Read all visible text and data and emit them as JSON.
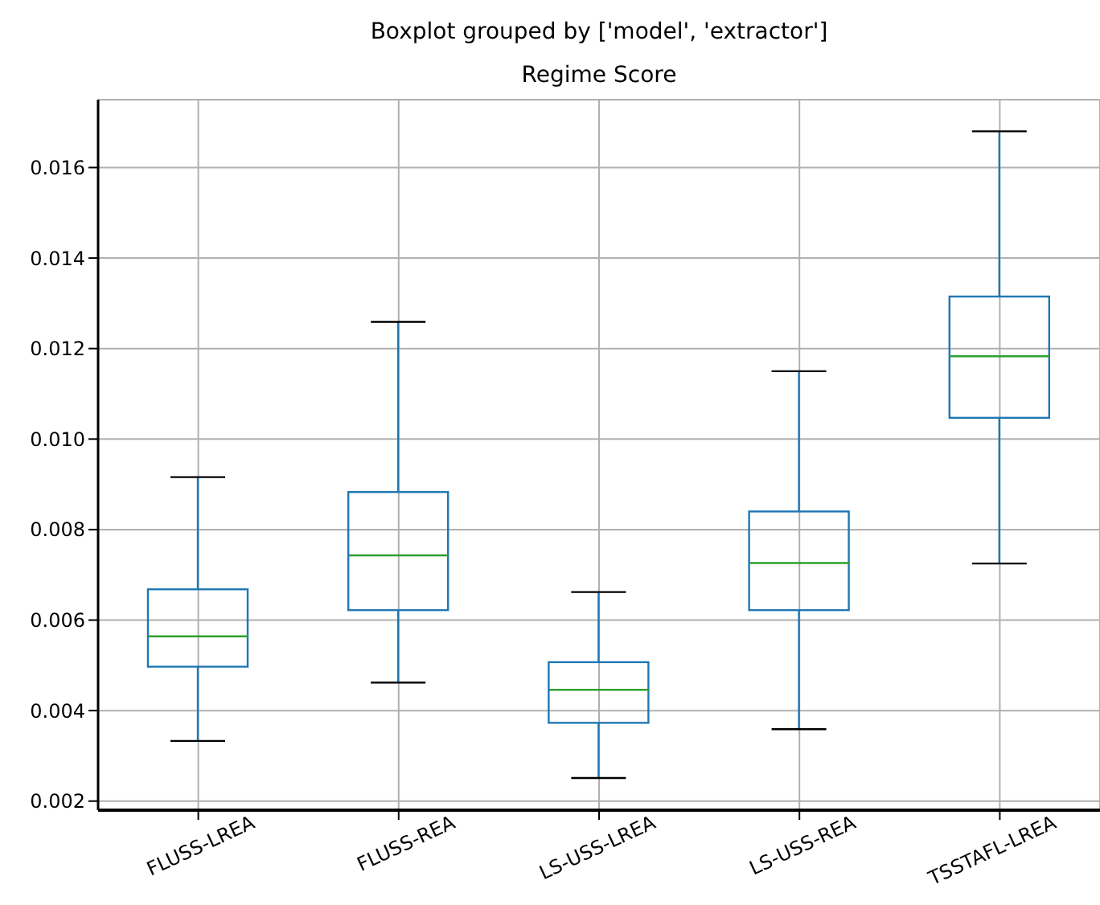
{
  "chart_data": {
    "type": "box",
    "title": "Boxplot grouped by ['model', 'extractor']",
    "subtitle": "Regime Score",
    "categories": [
      "FLUSS-LREA",
      "FLUSS-REA",
      "LS-USS-LREA",
      "LS-USS-REA",
      "TSSTAFL-LREA"
    ],
    "color": "#1f77b4",
    "boxes": [
      {
        "low": 0.00333,
        "q1": 0.00497,
        "median": 0.00564,
        "q3": 0.00668,
        "high": 0.00916
      },
      {
        "low": 0.00462,
        "q1": 0.00622,
        "median": 0.00743,
        "q3": 0.00883,
        "high": 0.01259
      },
      {
        "low": 0.00251,
        "q1": 0.00373,
        "median": 0.00446,
        "q3": 0.00507,
        "high": 0.00662
      },
      {
        "low": 0.00359,
        "q1": 0.00622,
        "median": 0.00726,
        "q3": 0.0084,
        "high": 0.0115
      },
      {
        "low": 0.00725,
        "q1": 0.01047,
        "median": 0.01183,
        "q3": 0.01315,
        "high": 0.0168
      }
    ],
    "ylim": [
      0.0018,
      0.0175
    ],
    "yticks": [
      0.002,
      0.004,
      0.006,
      0.008,
      {
        "value": 0.01,
        "label": "0.010"
      },
      0.012,
      0.014,
      0.016
    ],
    "grid": true
  }
}
